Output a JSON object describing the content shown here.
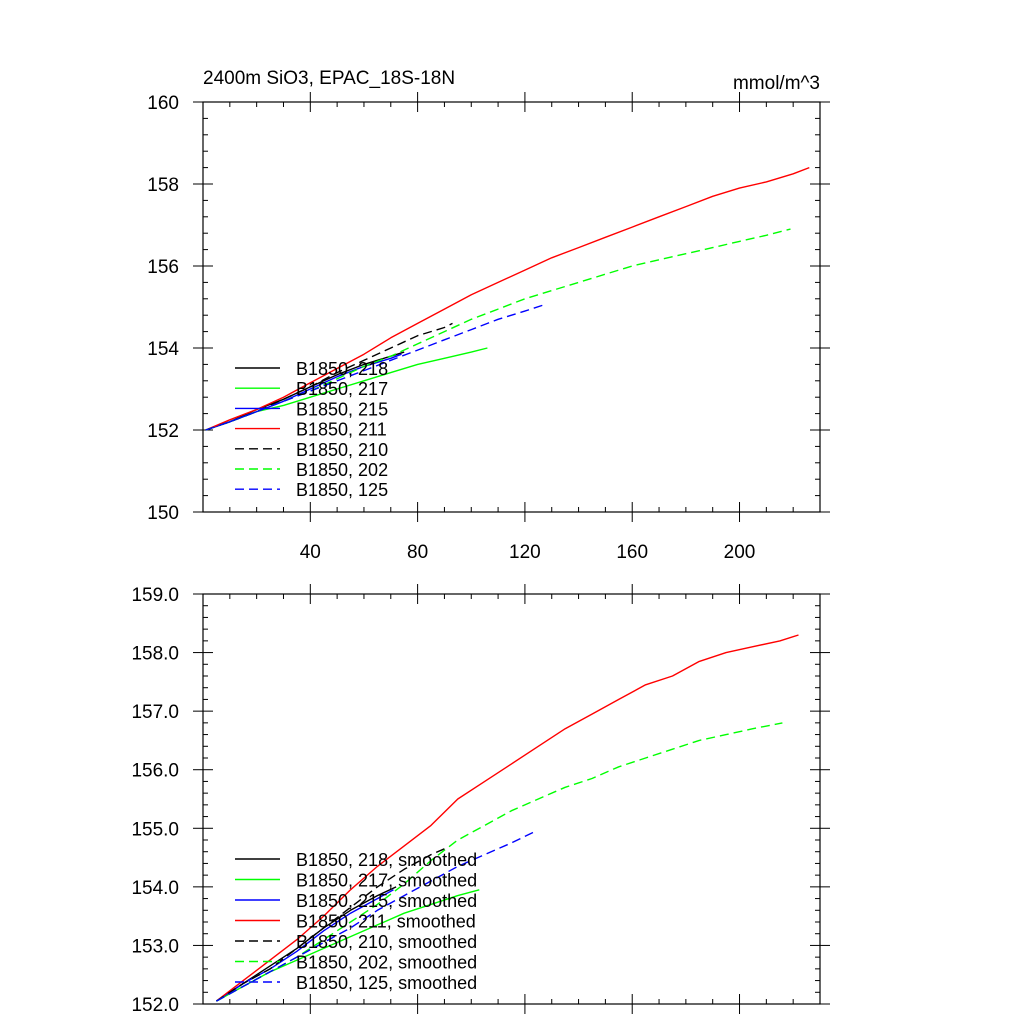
{
  "chart_data": [
    {
      "type": "line",
      "title": "2400m SiO3, EPAC_18S-18N",
      "units_label": "mmol/m^3",
      "xlim": [
        0,
        230
      ],
      "ylim": [
        150,
        160
      ],
      "xticks": [
        40,
        80,
        120,
        160,
        200
      ],
      "xtick_labels": [
        "40",
        "80",
        "120",
        "160",
        "200"
      ],
      "yticks": [
        150,
        152,
        154,
        156,
        158,
        160
      ],
      "ytick_labels": [
        "150",
        "152",
        "154",
        "156",
        "158",
        "160"
      ],
      "legend_position": "bottom-left",
      "series": [
        {
          "name": "B1850, 218",
          "color": "#000000",
          "dash": "solid",
          "x": [
            1,
            10,
            20,
            30,
            40,
            50,
            60,
            70,
            75
          ],
          "y": [
            152.0,
            152.2,
            152.5,
            152.75,
            153.05,
            153.35,
            153.6,
            153.8,
            153.9
          ]
        },
        {
          "name": "B1850, 217",
          "color": "#00ff00",
          "dash": "solid",
          "x": [
            1,
            10,
            20,
            30,
            40,
            50,
            60,
            70,
            80,
            90,
            100,
            106
          ],
          "y": [
            152.0,
            152.2,
            152.45,
            152.6,
            152.8,
            153.0,
            153.2,
            153.4,
            153.6,
            153.75,
            153.9,
            154.0
          ]
        },
        {
          "name": "B1850, 215",
          "color": "#0000ff",
          "dash": "solid",
          "x": [
            1,
            10,
            20,
            30,
            40,
            50,
            60,
            70,
            74
          ],
          "y": [
            152.0,
            152.2,
            152.45,
            152.7,
            153.0,
            153.3,
            153.55,
            153.75,
            153.85
          ]
        },
        {
          "name": "B1850, 211",
          "color": "#ff0000",
          "dash": "solid",
          "x": [
            1,
            10,
            20,
            30,
            40,
            50,
            60,
            70,
            80,
            90,
            100,
            110,
            120,
            130,
            140,
            150,
            160,
            170,
            180,
            190,
            200,
            210,
            220,
            226
          ],
          "y": [
            152.0,
            152.25,
            152.5,
            152.8,
            153.15,
            153.5,
            153.85,
            154.25,
            154.6,
            154.95,
            155.3,
            155.6,
            155.9,
            156.2,
            156.45,
            156.7,
            156.95,
            157.2,
            157.45,
            157.7,
            157.9,
            158.05,
            158.25,
            158.4
          ]
        },
        {
          "name": "B1850, 210",
          "color": "#000000",
          "dash": "dashed",
          "x": [
            1,
            10,
            20,
            30,
            40,
            50,
            60,
            70,
            80,
            90,
            93
          ],
          "y": [
            152.0,
            152.2,
            152.45,
            152.75,
            153.05,
            153.4,
            153.7,
            154.0,
            154.3,
            154.5,
            154.6
          ]
        },
        {
          "name": "B1850, 202",
          "color": "#00ff00",
          "dash": "dashed",
          "x": [
            1,
            10,
            20,
            30,
            40,
            50,
            60,
            70,
            80,
            90,
            100,
            110,
            120,
            130,
            140,
            150,
            160,
            170,
            180,
            190,
            200,
            210,
            219
          ],
          "y": [
            152.0,
            152.2,
            152.45,
            152.7,
            152.95,
            153.25,
            153.55,
            153.8,
            154.1,
            154.4,
            154.7,
            154.95,
            155.2,
            155.4,
            155.6,
            155.8,
            156.0,
            156.15,
            156.3,
            156.45,
            156.6,
            156.75,
            156.9
          ]
        },
        {
          "name": "B1850, 125",
          "color": "#0000ff",
          "dash": "dashed",
          "x": [
            1,
            10,
            20,
            30,
            40,
            50,
            60,
            70,
            80,
            90,
            100,
            110,
            120,
            127
          ],
          "y": [
            152.0,
            152.2,
            152.45,
            152.7,
            152.95,
            153.2,
            153.45,
            153.7,
            153.95,
            154.2,
            154.45,
            154.7,
            154.9,
            155.05
          ]
        }
      ]
    },
    {
      "type": "line",
      "xlim": [
        0,
        230
      ],
      "ylim": [
        152,
        159
      ],
      "xticks": [
        40,
        80,
        120,
        160,
        200
      ],
      "yticks": [
        152,
        153,
        154,
        155,
        156,
        157,
        158,
        159
      ],
      "ytick_labels": [
        "152.0",
        "153.0",
        "154.0",
        "155.0",
        "156.0",
        "157.0",
        "158.0",
        "159.0"
      ],
      "legend_position": "bottom-left",
      "series": [
        {
          "name": "B1850, 218, smoothed",
          "color": "#000000",
          "dash": "solid",
          "x": [
            5,
            15,
            25,
            35,
            45,
            55,
            65,
            72
          ],
          "y": [
            152.05,
            152.35,
            152.65,
            152.95,
            153.3,
            153.6,
            153.85,
            154.0
          ]
        },
        {
          "name": "B1850, 217, smoothed",
          "color": "#00ff00",
          "dash": "solid",
          "x": [
            5,
            15,
            25,
            35,
            45,
            55,
            65,
            75,
            85,
            95,
            103
          ],
          "y": [
            152.05,
            152.3,
            152.55,
            152.75,
            152.95,
            153.15,
            153.35,
            153.55,
            153.7,
            153.85,
            153.95
          ]
        },
        {
          "name": "B1850, 215, smoothed",
          "color": "#0000ff",
          "dash": "solid",
          "x": [
            5,
            15,
            25,
            35,
            45,
            55,
            65,
            71
          ],
          "y": [
            152.05,
            152.35,
            152.6,
            152.9,
            153.25,
            153.55,
            153.8,
            153.95
          ]
        },
        {
          "name": "B1850, 211, smoothed",
          "color": "#ff0000",
          "dash": "solid",
          "x": [
            5,
            15,
            25,
            35,
            45,
            55,
            65,
            75,
            85,
            95,
            105,
            115,
            125,
            135,
            145,
            155,
            165,
            175,
            185,
            195,
            205,
            215,
            222
          ],
          "y": [
            152.05,
            152.4,
            152.75,
            153.1,
            153.5,
            153.95,
            154.35,
            154.7,
            155.05,
            155.5,
            155.8,
            156.1,
            156.4,
            156.7,
            156.95,
            157.2,
            157.45,
            157.6,
            157.85,
            158.0,
            158.1,
            158.2,
            158.3
          ]
        },
        {
          "name": "B1850, 210, smoothed",
          "color": "#000000",
          "dash": "dashed",
          "x": [
            5,
            15,
            25,
            35,
            45,
            55,
            65,
            75,
            85,
            90
          ],
          "y": [
            152.05,
            152.35,
            152.6,
            152.95,
            153.3,
            153.65,
            154.0,
            154.3,
            154.55,
            154.65
          ]
        },
        {
          "name": "B1850, 202, smoothed",
          "color": "#00ff00",
          "dash": "dashed",
          "x": [
            5,
            15,
            25,
            35,
            45,
            55,
            65,
            75,
            85,
            95,
            105,
            115,
            125,
            135,
            145,
            155,
            165,
            175,
            185,
            195,
            205,
            216
          ],
          "y": [
            152.05,
            152.3,
            152.55,
            152.8,
            153.1,
            153.4,
            153.7,
            154.05,
            154.45,
            154.8,
            155.05,
            155.3,
            155.5,
            155.7,
            155.85,
            156.05,
            156.2,
            156.35,
            156.5,
            156.6,
            156.7,
            156.8
          ]
        },
        {
          "name": "B1850, 125, smoothed",
          "color": "#0000ff",
          "dash": "dashed",
          "x": [
            5,
            15,
            25,
            35,
            45,
            55,
            65,
            75,
            85,
            95,
            105,
            115,
            124
          ],
          "y": [
            152.05,
            152.3,
            152.55,
            152.8,
            153.05,
            153.3,
            153.6,
            153.85,
            154.1,
            154.35,
            154.55,
            154.75,
            154.95
          ]
        }
      ]
    }
  ]
}
